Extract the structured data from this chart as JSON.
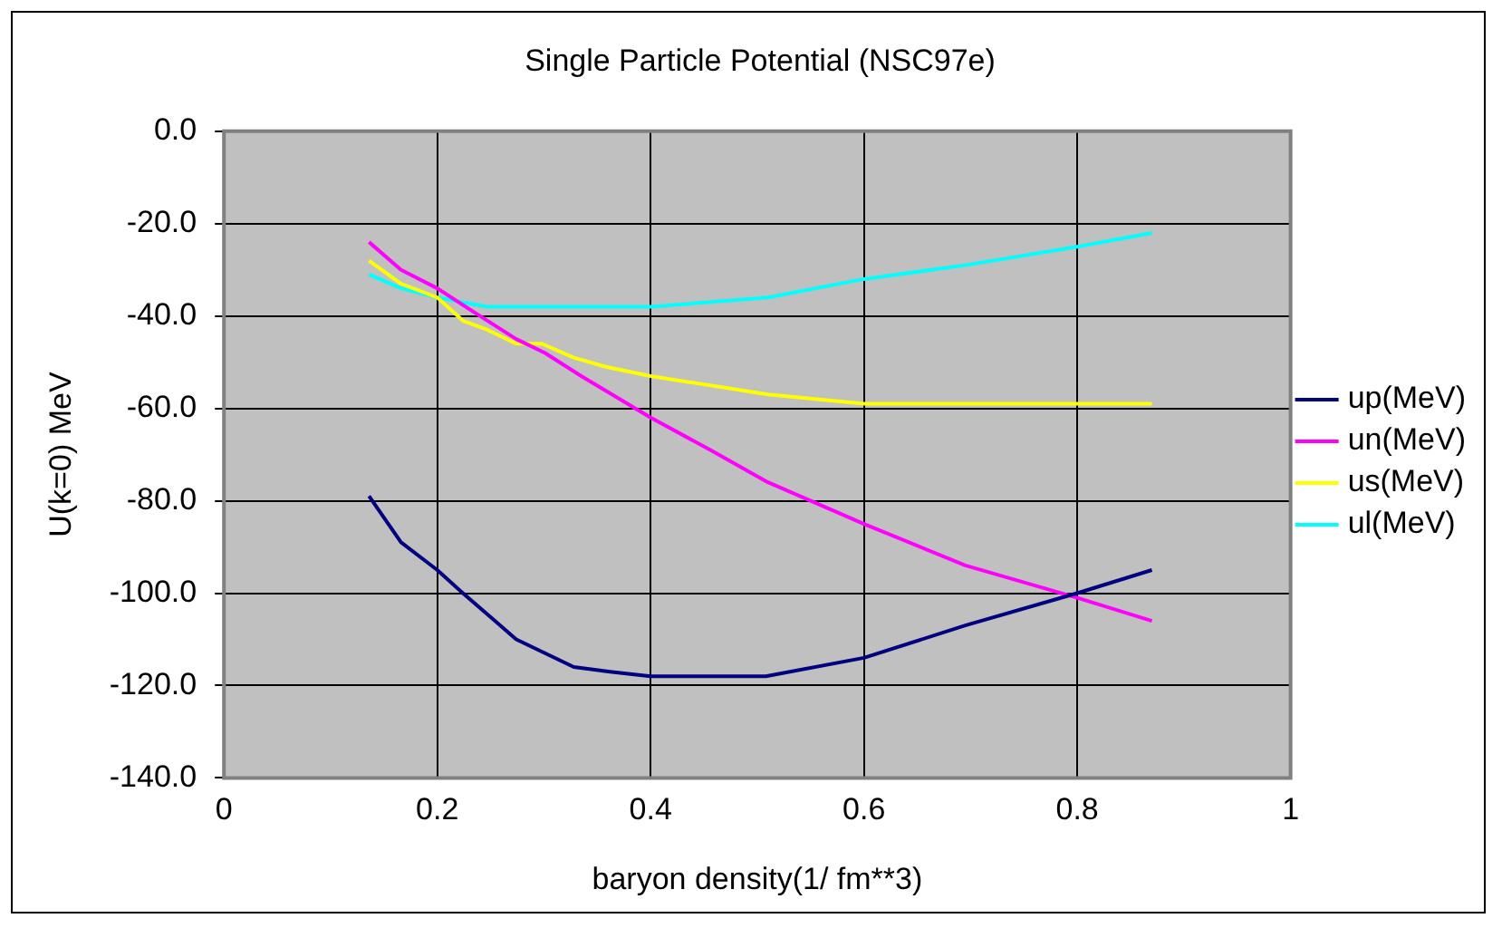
{
  "chart_data": {
    "type": "line",
    "title": "Single Particle Potential (NSC97e)",
    "xlabel": "baryon density(1/ fm**3)",
    "ylabel": "U(k=0) MeV",
    "xlim": [
      0,
      1
    ],
    "xticks": [
      0,
      0.2,
      0.4,
      0.6,
      0.8,
      1
    ],
    "ylim": [
      -140,
      0
    ],
    "yticks": [
      {
        "value": 0,
        "label": "0.0"
      },
      {
        "value": -20,
        "label": "-20.0"
      },
      {
        "value": -40,
        "label": "-40.0"
      },
      {
        "value": -60,
        "label": "-60.0"
      },
      {
        "value": -80,
        "label": "-80.0"
      },
      {
        "value": -100,
        "label": "-100.0"
      },
      {
        "value": -120,
        "label": "-120.0"
      },
      {
        "value": -140,
        "label": "-140.0"
      }
    ],
    "grid": true,
    "legend": "right",
    "marker": "none",
    "line_style": "solid",
    "series": [
      {
        "name": "up(MeV)",
        "color": "#000080",
        "x": [
          0.136,
          0.166,
          0.2,
          0.224,
          0.254,
          0.274,
          0.301,
          0.328,
          0.362,
          0.4,
          0.508,
          0.6,
          0.695,
          0.8,
          0.87
        ],
        "values": [
          -79,
          -89,
          -95,
          -100,
          -106,
          -110,
          -113,
          -116,
          -117,
          -118,
          -118,
          -114,
          -107,
          -100,
          -95
        ]
      },
      {
        "name": "un(MeV)",
        "color": "#ff00ff",
        "x": [
          0.136,
          0.166,
          0.2,
          0.24,
          0.274,
          0.301,
          0.335,
          0.4,
          0.456,
          0.51,
          0.6,
          0.695,
          0.8,
          0.87
        ],
        "values": [
          -24,
          -30,
          -34,
          -40,
          -45,
          -48,
          -53,
          -62,
          -69,
          -76,
          -85,
          -94,
          -101,
          -106
        ]
      },
      {
        "name": "us(MeV)",
        "color": "#ffff00",
        "x": [
          0.136,
          0.166,
          0.2,
          0.224,
          0.247,
          0.274,
          0.298,
          0.328,
          0.358,
          0.4,
          0.51,
          0.6,
          0.87
        ],
        "values": [
          -28,
          -33,
          -36,
          -41,
          -43,
          -46,
          -46,
          -49,
          -51,
          -53,
          -57,
          -59,
          -59
        ]
      },
      {
        "name": "ul(MeV)",
        "color": "#00ffff",
        "x": [
          0.136,
          0.166,
          0.2,
          0.247,
          0.4,
          0.51,
          0.6,
          0.695,
          0.8,
          0.87
        ],
        "values": [
          -31,
          -34,
          -36,
          -38,
          -38,
          -36,
          -32,
          -29,
          -25,
          -22
        ]
      }
    ]
  }
}
